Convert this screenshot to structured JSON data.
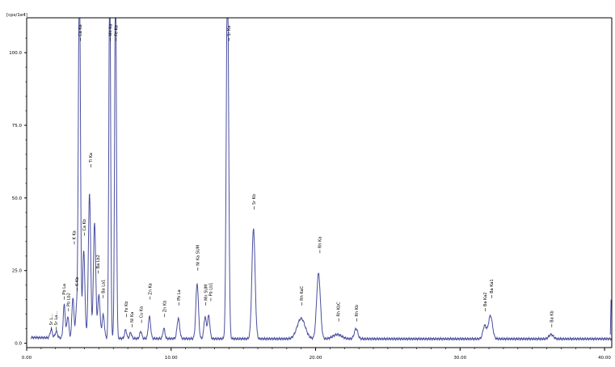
{
  "colors": {
    "trace": "#4a4f9e",
    "axis": "#000000",
    "background": "#ffffff"
  },
  "chart_data": {
    "type": "line",
    "ylabel": "[cps/1e4]",
    "xlim": [
      0,
      40.5
    ],
    "ylim": [
      -1.5,
      112
    ],
    "x_ticks": [
      {
        "value": 0,
        "label": "0.00"
      },
      {
        "value": 10,
        "label": "10.00"
      },
      {
        "value": 20,
        "label": "20.00"
      },
      {
        "value": 30,
        "label": "30.00"
      },
      {
        "value": 40,
        "label": "40.00"
      }
    ],
    "y_ticks": [
      {
        "value": 0,
        "label": "0.0"
      },
      {
        "value": 25,
        "label": "25.0"
      },
      {
        "value": 50,
        "label": "50.0"
      },
      {
        "value": 75,
        "label": "75.0"
      },
      {
        "value": 100,
        "label": "100.0"
      }
    ],
    "baseline": 1.5,
    "peaks": [
      {
        "x": 1.7,
        "h": 2.8,
        "w": 0.08
      },
      {
        "x": 2.05,
        "h": 2.2,
        "w": 0.08
      },
      {
        "x": 2.6,
        "h": 11.5,
        "w": 0.07
      },
      {
        "x": 2.85,
        "h": 7.5,
        "w": 0.07
      },
      {
        "x": 3.2,
        "h": 14.0,
        "w": 0.07
      },
      {
        "x": 3.45,
        "h": 9.5,
        "w": 0.07
      },
      {
        "x": 3.65,
        "h": 130,
        "w": 0.07
      },
      {
        "x": 3.95,
        "h": 30.0,
        "w": 0.08
      },
      {
        "x": 4.35,
        "h": 50.0,
        "w": 0.08
      },
      {
        "x": 4.7,
        "h": 40.0,
        "w": 0.08
      },
      {
        "x": 5.0,
        "h": 15.0,
        "w": 0.08
      },
      {
        "x": 5.3,
        "h": 8.0,
        "w": 0.08
      },
      {
        "x": 5.75,
        "h": 130,
        "w": 0.06
      },
      {
        "x": 6.15,
        "h": 130,
        "w": 0.06
      },
      {
        "x": 6.85,
        "h": 3.0,
        "w": 0.07
      },
      {
        "x": 7.2,
        "h": 2.0,
        "w": 0.07
      },
      {
        "x": 7.9,
        "h": 2.5,
        "w": 0.07
      },
      {
        "x": 8.5,
        "h": 7.5,
        "w": 0.08
      },
      {
        "x": 9.5,
        "h": 3.5,
        "w": 0.07
      },
      {
        "x": 10.5,
        "h": 7.0,
        "w": 0.09
      },
      {
        "x": 11.8,
        "h": 19.0,
        "w": 0.09
      },
      {
        "x": 12.35,
        "h": 7.5,
        "w": 0.08
      },
      {
        "x": 12.6,
        "h": 8.0,
        "w": 0.08
      },
      {
        "x": 13.9,
        "h": 130,
        "w": 0.08
      },
      {
        "x": 15.7,
        "h": 38.0,
        "w": 0.11
      },
      {
        "x": 19.0,
        "h": 7.0,
        "w": 0.28
      },
      {
        "x": 20.2,
        "h": 22.5,
        "w": 0.13
      },
      {
        "x": 21.5,
        "h": 1.5,
        "w": 0.3
      },
      {
        "x": 22.8,
        "h": 3.5,
        "w": 0.12
      },
      {
        "x": 31.7,
        "h": 4.5,
        "w": 0.12
      },
      {
        "x": 32.1,
        "h": 8.0,
        "w": 0.14
      },
      {
        "x": 36.3,
        "h": 1.5,
        "w": 0.15
      }
    ],
    "annotations": [
      {
        "x": 1.7,
        "y": 4.5,
        "label": "Sr L..."
      },
      {
        "x": 2.05,
        "y": 4.5,
        "label": "Sr La..."
      },
      {
        "x": 2.6,
        "y": 15.0,
        "label": "Pb La"
      },
      {
        "x": 2.9,
        "y": 11.0,
        "label": "Pb Lb2"
      },
      {
        "x": 3.3,
        "y": 34.0,
        "label": "K Ka"
      },
      {
        "x": 3.5,
        "y": 18.0,
        "label": "K Kb"
      },
      {
        "x": 3.72,
        "y": 104.0,
        "label": "Ca Ka"
      },
      {
        "x": 4.0,
        "y": 37.0,
        "label": "Ca Kb"
      },
      {
        "x": 4.45,
        "y": 60.5,
        "label": "Ti Ka"
      },
      {
        "x": 4.95,
        "y": 24.0,
        "label": "Ba Lb2"
      },
      {
        "x": 5.3,
        "y": 15.5,
        "label": "Ba La1"
      },
      {
        "x": 5.8,
        "y": 104.0,
        "label": "Mn Ka"
      },
      {
        "x": 6.2,
        "y": 104.0,
        "label": "Fe Ka"
      },
      {
        "x": 6.9,
        "y": 9.0,
        "label": "Fe Kb"
      },
      {
        "x": 7.3,
        "y": 5.5,
        "label": "Ni Ka"
      },
      {
        "x": 7.95,
        "y": 7.0,
        "label": "Cu Ka"
      },
      {
        "x": 8.55,
        "y": 15.0,
        "label": "Zn Ka"
      },
      {
        "x": 9.55,
        "y": 9.0,
        "label": "Zn Kb"
      },
      {
        "x": 10.55,
        "y": 13.0,
        "label": "Pb La"
      },
      {
        "x": 11.85,
        "y": 25.0,
        "label": "Ni Ka SUM"
      },
      {
        "x": 12.4,
        "y": 13.0,
        "label": "Mn SUM"
      },
      {
        "x": 12.75,
        "y": 14.5,
        "label": "Pb Lb1"
      },
      {
        "x": 14.0,
        "y": 104.0,
        "label": "Sr Ka"
      },
      {
        "x": 15.75,
        "y": 46.0,
        "label": "Sr Kb"
      },
      {
        "x": 19.05,
        "y": 13.0,
        "label": "Rh KaC"
      },
      {
        "x": 20.3,
        "y": 31.0,
        "label": "Rh Ka"
      },
      {
        "x": 21.6,
        "y": 7.5,
        "label": "Rh KbC"
      },
      {
        "x": 22.85,
        "y": 7.5,
        "label": "Rh Kb"
      },
      {
        "x": 31.75,
        "y": 11.0,
        "label": "Ba Ka2"
      },
      {
        "x": 32.2,
        "y": 15.5,
        "label": "Ba Ka1"
      },
      {
        "x": 36.35,
        "y": 5.5,
        "label": "Ba Kb"
      }
    ]
  }
}
